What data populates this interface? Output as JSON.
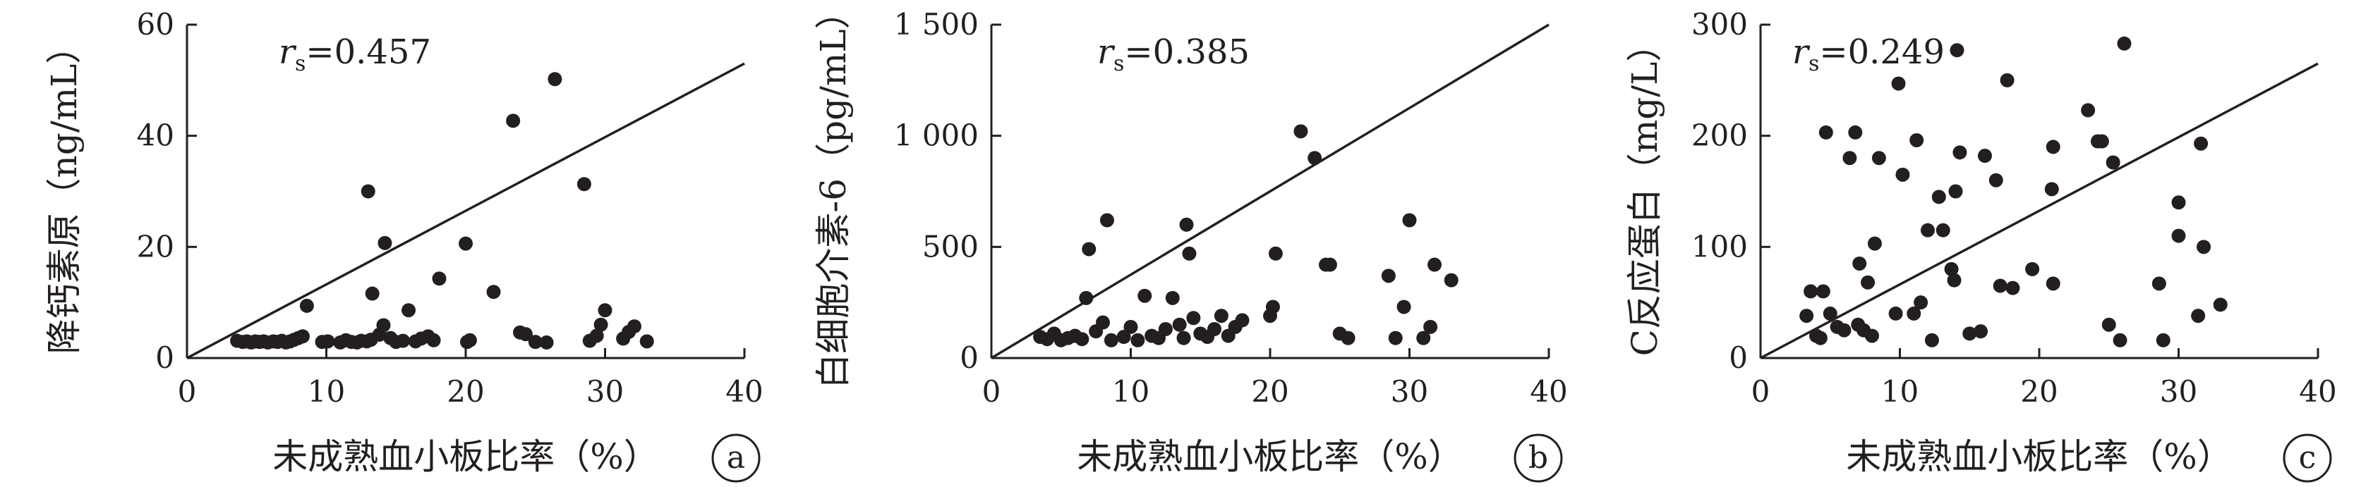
{
  "chart_data": [
    {
      "type": "scatter",
      "panel_label": "a",
      "xlabel": "未成熟血小板比率（%）",
      "ylabel": "降钙素原（ng/mL）",
      "xlim": [
        0,
        40
      ],
      "ylim": [
        0,
        60
      ],
      "x_ticks": [
        "0",
        "10",
        "20",
        "30",
        "40"
      ],
      "y_ticks": [
        "0",
        "20",
        "40",
        "60"
      ],
      "annotation": {
        "symbol": "r",
        "subscript": "s",
        "value": "=0.457"
      },
      "fit_line": [
        [
          0,
          0
        ],
        [
          40,
          53
        ]
      ],
      "points": [
        [
          3.6,
          3.1
        ],
        [
          4.0,
          2.9
        ],
        [
          4.3,
          3.0
        ],
        [
          4.6,
          2.8
        ],
        [
          4.9,
          3.0
        ],
        [
          5.2,
          2.9
        ],
        [
          5.5,
          3.0
        ],
        [
          5.8,
          2.8
        ],
        [
          6.2,
          3.0
        ],
        [
          6.5,
          2.9
        ],
        [
          6.8,
          3.1
        ],
        [
          7.1,
          2.8
        ],
        [
          7.4,
          3.0
        ],
        [
          7.7,
          3.3
        ],
        [
          8.0,
          3.6
        ],
        [
          8.3,
          3.9
        ],
        [
          8.6,
          9.4
        ],
        [
          9.7,
          2.9
        ],
        [
          10.1,
          3.0
        ],
        [
          11.0,
          2.8
        ],
        [
          11.4,
          3.2
        ],
        [
          11.8,
          2.9
        ],
        [
          12.2,
          2.8
        ],
        [
          12.5,
          3.1
        ],
        [
          12.9,
          3.0
        ],
        [
          13.2,
          3.3
        ],
        [
          13.0,
          30.0
        ],
        [
          13.3,
          11.6
        ],
        [
          13.8,
          4.2
        ],
        [
          14.1,
          5.9
        ],
        [
          14.2,
          20.7
        ],
        [
          14.6,
          3.6
        ],
        [
          15.0,
          2.9
        ],
        [
          15.5,
          3.1
        ],
        [
          15.9,
          8.6
        ],
        [
          16.4,
          3.0
        ],
        [
          16.8,
          3.5
        ],
        [
          17.3,
          3.9
        ],
        [
          17.7,
          3.2
        ],
        [
          18.1,
          14.3
        ],
        [
          20.1,
          2.9
        ],
        [
          20.3,
          3.2
        ],
        [
          20.0,
          20.6
        ],
        [
          22.0,
          11.9
        ],
        [
          23.4,
          42.7
        ],
        [
          23.9,
          4.6
        ],
        [
          24.3,
          4.3
        ],
        [
          25.0,
          2.9
        ],
        [
          25.8,
          2.8
        ],
        [
          26.4,
          50.2
        ],
        [
          28.5,
          31.3
        ],
        [
          28.9,
          3.1
        ],
        [
          29.4,
          4.0
        ],
        [
          29.7,
          6.0
        ],
        [
          30.0,
          8.6
        ],
        [
          31.3,
          3.5
        ],
        [
          31.7,
          4.7
        ],
        [
          32.1,
          5.7
        ],
        [
          33.0,
          3.0
        ]
      ]
    },
    {
      "type": "scatter",
      "panel_label": "b",
      "xlabel": "未成熟血小板比率（%）",
      "ylabel": "白细胞介素-6（pg/mL）",
      "xlim": [
        0,
        40
      ],
      "ylim": [
        0,
        1500
      ],
      "x_ticks": [
        "0",
        "10",
        "20",
        "30",
        "40"
      ],
      "y_ticks": [
        "0",
        "500",
        "1 000",
        "1 500"
      ],
      "annotation": {
        "symbol": "r",
        "subscript": "s",
        "value": "=0.385"
      },
      "fit_line": [
        [
          0,
          0
        ],
        [
          40,
          1500
        ]
      ],
      "points": [
        [
          3.5,
          95
        ],
        [
          4.0,
          85
        ],
        [
          4.5,
          110
        ],
        [
          5.0,
          80
        ],
        [
          5.5,
          90
        ],
        [
          6.0,
          100
        ],
        [
          6.5,
          85
        ],
        [
          6.8,
          270
        ],
        [
          7.0,
          490
        ],
        [
          7.5,
          120
        ],
        [
          8.0,
          160
        ],
        [
          8.3,
          620
        ],
        [
          8.6,
          80
        ],
        [
          9.5,
          95
        ],
        [
          10.0,
          140
        ],
        [
          10.5,
          80
        ],
        [
          11.0,
          280
        ],
        [
          11.5,
          100
        ],
        [
          12.0,
          90
        ],
        [
          12.5,
          130
        ],
        [
          13.0,
          270
        ],
        [
          13.5,
          150
        ],
        [
          13.8,
          90
        ],
        [
          14.0,
          600
        ],
        [
          14.2,
          470
        ],
        [
          14.5,
          180
        ],
        [
          15.0,
          110
        ],
        [
          15.5,
          95
        ],
        [
          16.0,
          130
        ],
        [
          16.5,
          190
        ],
        [
          17.0,
          100
        ],
        [
          17.5,
          140
        ],
        [
          18.0,
          170
        ],
        [
          20.0,
          190
        ],
        [
          20.2,
          230
        ],
        [
          20.4,
          470
        ],
        [
          22.2,
          1020
        ],
        [
          23.2,
          900
        ],
        [
          24.0,
          420
        ],
        [
          24.3,
          420
        ],
        [
          25.0,
          110
        ],
        [
          25.6,
          90
        ],
        [
          28.5,
          370
        ],
        [
          29.0,
          90
        ],
        [
          29.6,
          230
        ],
        [
          30.0,
          620
        ],
        [
          31.0,
          90
        ],
        [
          31.5,
          140
        ],
        [
          31.8,
          420
        ],
        [
          33.0,
          350
        ]
      ]
    },
    {
      "type": "scatter",
      "panel_label": "c",
      "xlabel": "未成熟血小板比率（%）",
      "ylabel": "C反应蛋白（mg/L）",
      "xlim": [
        0,
        40
      ],
      "ylim": [
        0,
        300
      ],
      "x_ticks": [
        "0",
        "10",
        "20",
        "30",
        "40"
      ],
      "y_ticks": [
        "0",
        "100",
        "200",
        "300"
      ],
      "annotation": {
        "symbol": "r",
        "subscript": "s",
        "value": "=0.249"
      },
      "fit_line": [
        [
          0,
          0
        ],
        [
          40,
          265
        ]
      ],
      "points": [
        [
          3.3,
          38
        ],
        [
          3.6,
          60
        ],
        [
          4.0,
          20
        ],
        [
          4.3,
          18
        ],
        [
          4.5,
          60
        ],
        [
          4.7,
          203
        ],
        [
          5.0,
          40
        ],
        [
          5.5,
          28
        ],
        [
          6.0,
          25
        ],
        [
          6.4,
          180
        ],
        [
          6.8,
          203
        ],
        [
          7.0,
          30
        ],
        [
          7.1,
          85
        ],
        [
          7.4,
          25
        ],
        [
          7.7,
          68
        ],
        [
          8.0,
          20
        ],
        [
          8.2,
          103
        ],
        [
          8.5,
          180
        ],
        [
          9.7,
          40
        ],
        [
          9.9,
          247
        ],
        [
          10.2,
          165
        ],
        [
          11.0,
          40
        ],
        [
          11.2,
          196
        ],
        [
          11.5,
          50
        ],
        [
          12.0,
          115
        ],
        [
          12.3,
          16
        ],
        [
          12.8,
          145
        ],
        [
          13.1,
          115
        ],
        [
          13.7,
          80
        ],
        [
          13.9,
          70
        ],
        [
          14.0,
          150
        ],
        [
          14.1,
          277
        ],
        [
          14.3,
          185
        ],
        [
          15.0,
          22
        ],
        [
          15.8,
          24
        ],
        [
          16.1,
          182
        ],
        [
          16.9,
          160
        ],
        [
          17.2,
          65
        ],
        [
          17.7,
          250
        ],
        [
          18.1,
          63
        ],
        [
          19.5,
          80
        ],
        [
          21.0,
          67
        ],
        [
          20.9,
          152
        ],
        [
          21.0,
          190
        ],
        [
          23.5,
          223
        ],
        [
          24.2,
          195
        ],
        [
          24.5,
          195
        ],
        [
          25.0,
          30
        ],
        [
          25.3,
          176
        ],
        [
          25.8,
          16
        ],
        [
          26.1,
          283
        ],
        [
          28.6,
          67
        ],
        [
          28.9,
          16
        ],
        [
          30.0,
          110
        ],
        [
          30.0,
          140
        ],
        [
          31.4,
          38
        ],
        [
          31.6,
          193
        ],
        [
          31.8,
          100
        ],
        [
          33.0,
          48
        ]
      ]
    }
  ]
}
